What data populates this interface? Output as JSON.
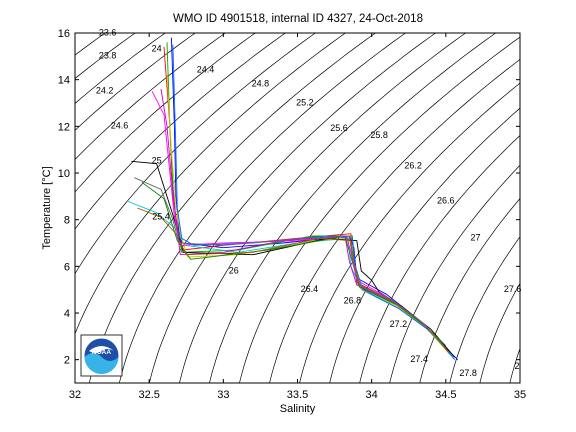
{
  "chart_data": {
    "type": "line",
    "title": "WMO ID 4901518, internal ID 4327, 24-Oct-2018",
    "xlabel": "Salinity",
    "ylabel": "Temperature [°C]",
    "xlim": [
      32,
      35
    ],
    "ylim": [
      1,
      16
    ],
    "xticks": [
      32,
      32.5,
      33,
      33.5,
      34,
      34.5,
      35
    ],
    "yticks": [
      2,
      4,
      6,
      8,
      10,
      12,
      14,
      16
    ],
    "grid": false,
    "legend": "none",
    "density_contours": [
      {
        "label": "23.6",
        "x": 32.22,
        "y": 15.9
      },
      {
        "label": "23.8",
        "x": 32.22,
        "y": 14.9
      },
      {
        "label": "24",
        "x": 32.55,
        "y": 15.2
      },
      {
        "label": "24.2",
        "x": 32.2,
        "y": 13.4
      },
      {
        "label": "24.4",
        "x": 32.88,
        "y": 14.3
      },
      {
        "label": "24.6",
        "x": 32.3,
        "y": 11.9
      },
      {
        "label": "24.8",
        "x": 33.25,
        "y": 13.7
      },
      {
        "label": "25",
        "x": 32.55,
        "y": 10.4
      },
      {
        "label": "25.2",
        "x": 33.55,
        "y": 12.9
      },
      {
        "label": "25.4",
        "x": 32.58,
        "y": 8.0
      },
      {
        "label": "25.6",
        "x": 33.78,
        "y": 11.8
      },
      {
        "label": "25.8",
        "x": 34.05,
        "y": 11.5
      },
      {
        "label": "26",
        "x": 33.07,
        "y": 5.7
      },
      {
        "label": "26.2",
        "x": 34.28,
        "y": 10.2
      },
      {
        "label": "26.4",
        "x": 33.58,
        "y": 4.9
      },
      {
        "label": "26.6",
        "x": 34.5,
        "y": 8.7
      },
      {
        "label": "26.8",
        "x": 33.87,
        "y": 4.4
      },
      {
        "label": "27",
        "x": 34.7,
        "y": 7.1
      },
      {
        "label": "27.2",
        "x": 34.18,
        "y": 3.4
      },
      {
        "label": "27.4",
        "x": 34.32,
        "y": 1.9
      },
      {
        "label": "27.6",
        "x": 34.95,
        "y": 4.9
      },
      {
        "label": "27.8",
        "x": 34.65,
        "y": 1.3
      },
      {
        "label": "2",
        "x": 34.98,
        "y": 1.6
      }
    ],
    "series": [
      {
        "color": "#0000ff",
        "points": [
          [
            32.65,
            15.8
          ],
          [
            32.67,
            12
          ],
          [
            32.68,
            9
          ],
          [
            32.7,
            7.5
          ],
          [
            32.72,
            7.0
          ],
          [
            33.0,
            6.8
          ],
          [
            33.4,
            7.0
          ],
          [
            33.85,
            7.3
          ],
          [
            33.88,
            6.8
          ],
          [
            33.9,
            5.5
          ],
          [
            34.1,
            4.8
          ],
          [
            34.3,
            3.8
          ],
          [
            34.5,
            2.5
          ],
          [
            34.58,
            2.0
          ]
        ]
      },
      {
        "color": "#ff0000",
        "points": [
          [
            32.6,
            15.4
          ],
          [
            32.64,
            12
          ],
          [
            32.66,
            9
          ],
          [
            32.7,
            7.3
          ],
          [
            32.73,
            6.7
          ],
          [
            33.0,
            6.9
          ],
          [
            33.5,
            7.2
          ],
          [
            33.86,
            7.4
          ],
          [
            33.87,
            6.5
          ],
          [
            33.9,
            5.3
          ],
          [
            34.12,
            4.6
          ],
          [
            34.33,
            3.6
          ],
          [
            34.5,
            2.5
          ]
        ]
      },
      {
        "color": "#00aa00",
        "points": [
          [
            32.62,
            15.6
          ],
          [
            32.64,
            12
          ],
          [
            32.66,
            9.5
          ],
          [
            32.68,
            8.0
          ],
          [
            32.72,
            6.6
          ],
          [
            33.1,
            6.7
          ],
          [
            33.6,
            7.3
          ],
          [
            33.87,
            7.3
          ],
          [
            33.88,
            6.3
          ],
          [
            33.92,
            5.1
          ],
          [
            34.15,
            4.4
          ],
          [
            34.36,
            3.4
          ],
          [
            34.52,
            2.3
          ]
        ]
      },
      {
        "color": "#00cccc",
        "points": [
          [
            32.35,
            8.8
          ],
          [
            32.55,
            8.3
          ],
          [
            32.68,
            7.6
          ],
          [
            32.74,
            6.9
          ],
          [
            33.1,
            6.6
          ],
          [
            33.5,
            7.0
          ],
          [
            33.84,
            7.2
          ],
          [
            33.86,
            6.0
          ],
          [
            33.93,
            5.0
          ],
          [
            34.18,
            4.2
          ],
          [
            34.4,
            3.2
          ],
          [
            34.55,
            2.1
          ]
        ]
      },
      {
        "color": "#cc00cc",
        "points": [
          [
            32.58,
            13.6
          ],
          [
            32.62,
            12
          ],
          [
            32.65,
            9.8
          ],
          [
            32.68,
            8.0
          ],
          [
            32.71,
            6.5
          ],
          [
            33.0,
            6.6
          ],
          [
            33.4,
            7.1
          ],
          [
            33.82,
            7.3
          ],
          [
            33.85,
            6.2
          ],
          [
            33.9,
            5.2
          ],
          [
            34.14,
            4.5
          ],
          [
            34.35,
            3.5
          ],
          [
            34.52,
            2.4
          ]
        ]
      },
      {
        "color": "#cccc00",
        "points": [
          [
            32.62,
            14.2
          ],
          [
            32.65,
            11
          ],
          [
            32.68,
            8.6
          ],
          [
            32.71,
            7.4
          ],
          [
            32.76,
            6.4
          ],
          [
            33.1,
            6.5
          ],
          [
            33.6,
            7.1
          ],
          [
            33.85,
            7.2
          ],
          [
            33.88,
            6.1
          ],
          [
            33.93,
            5.0
          ],
          [
            34.17,
            4.3
          ],
          [
            34.38,
            3.3
          ],
          [
            34.53,
            2.2
          ]
        ]
      },
      {
        "color": "#000000",
        "points": [
          [
            32.38,
            10.5
          ],
          [
            32.55,
            10.4
          ],
          [
            32.66,
            8.2
          ],
          [
            32.73,
            6.6
          ],
          [
            33.2,
            6.5
          ],
          [
            33.7,
            7.2
          ],
          [
            33.9,
            7.1
          ],
          [
            33.93,
            5.8
          ],
          [
            34.0,
            5.4
          ],
          [
            34.05,
            4.9
          ],
          [
            34.2,
            4.3
          ],
          [
            34.4,
            3.3
          ],
          [
            34.56,
            2.1
          ]
        ]
      },
      {
        "color": "#008800",
        "points": [
          [
            32.45,
            9.6
          ],
          [
            32.6,
            8.9
          ],
          [
            32.69,
            7.1
          ],
          [
            32.78,
            6.3
          ],
          [
            33.3,
            6.7
          ],
          [
            33.82,
            7.3
          ],
          [
            33.86,
            6.4
          ],
          [
            33.92,
            5.1
          ],
          [
            34.16,
            4.4
          ],
          [
            34.37,
            3.4
          ],
          [
            34.5,
            2.6
          ]
        ]
      },
      {
        "color": "#ff00ff",
        "points": [
          [
            32.52,
            13.5
          ],
          [
            32.6,
            12.5
          ],
          [
            32.64,
            10
          ],
          [
            32.67,
            8.1
          ],
          [
            32.71,
            6.9
          ],
          [
            33.0,
            7.0
          ],
          [
            33.5,
            7.1
          ],
          [
            33.83,
            7.3
          ],
          [
            33.86,
            6.6
          ],
          [
            33.9,
            5.4
          ],
          [
            34.1,
            4.7
          ],
          [
            34.32,
            3.7
          ],
          [
            34.5,
            2.5
          ]
        ]
      },
      {
        "color": "#0066ff",
        "points": [
          [
            32.66,
            15.5
          ],
          [
            32.68,
            11
          ],
          [
            32.69,
            8.5
          ],
          [
            32.72,
            7.2
          ],
          [
            32.8,
            6.9
          ],
          [
            33.2,
            7.0
          ],
          [
            33.7,
            7.3
          ],
          [
            33.87,
            7.2
          ],
          [
            33.89,
            6.0
          ],
          [
            33.94,
            5.0
          ],
          [
            34.18,
            4.2
          ],
          [
            34.4,
            3.2
          ],
          [
            34.56,
            2.0
          ]
        ]
      },
      {
        "color": "#aa5500",
        "points": [
          [
            32.42,
            8.5
          ],
          [
            32.58,
            8.1
          ],
          [
            32.68,
            7.4
          ],
          [
            32.75,
            6.5
          ],
          [
            33.2,
            6.6
          ],
          [
            33.65,
            7.2
          ],
          [
            33.86,
            7.1
          ],
          [
            33.88,
            6.2
          ],
          [
            33.92,
            5.2
          ],
          [
            34.15,
            4.5
          ],
          [
            34.36,
            3.5
          ],
          [
            34.52,
            2.3
          ]
        ]
      },
      {
        "color": "#666666",
        "points": [
          [
            32.4,
            9.8
          ],
          [
            32.58,
            9.3
          ],
          [
            32.66,
            8.0
          ],
          [
            32.7,
            7.0
          ],
          [
            33.0,
            6.9
          ],
          [
            33.55,
            7.2
          ],
          [
            33.85,
            7.3
          ],
          [
            33.87,
            6.4
          ],
          [
            33.91,
            5.2
          ],
          [
            34.13,
            4.6
          ],
          [
            34.34,
            3.6
          ],
          [
            34.5,
            2.5
          ]
        ]
      }
    ]
  }
}
